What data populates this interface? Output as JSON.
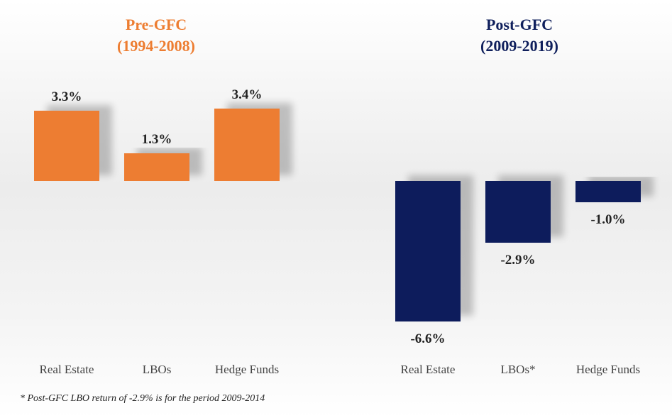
{
  "charts": [
    {
      "title_line1": "Pre-GFC",
      "title_line2": "(1994-2008)",
      "color": "#ED7D31"
    },
    {
      "title_line1": "Post-GFC",
      "title_line2": "(2009-2019)",
      "color": "#0F1F5C"
    }
  ],
  "chart_data": [
    {
      "type": "bar",
      "title": "Pre-GFC (1994-2008)",
      "categories": [
        "Real Estate",
        "LBOs",
        "Hedge Funds"
      ],
      "values": [
        3.3,
        1.3,
        3.4
      ],
      "labels": [
        "3.3%",
        "1.3%",
        "3.4%"
      ],
      "color": "#ED7D31",
      "grid": false,
      "legend": "none"
    },
    {
      "type": "bar",
      "title": "Post-GFC (2009-2019)",
      "categories": [
        "Real Estate",
        "LBOs*",
        "Hedge Funds"
      ],
      "values": [
        -6.6,
        -2.9,
        -1.0
      ],
      "labels": [
        "-6.6%",
        "-2.9%",
        "-1.0%"
      ],
      "color": "#0F1F5C",
      "grid": false,
      "legend": "none"
    }
  ],
  "footnote": "* Post-GFC LBO return of -2.9% is for the period 2009-2014"
}
